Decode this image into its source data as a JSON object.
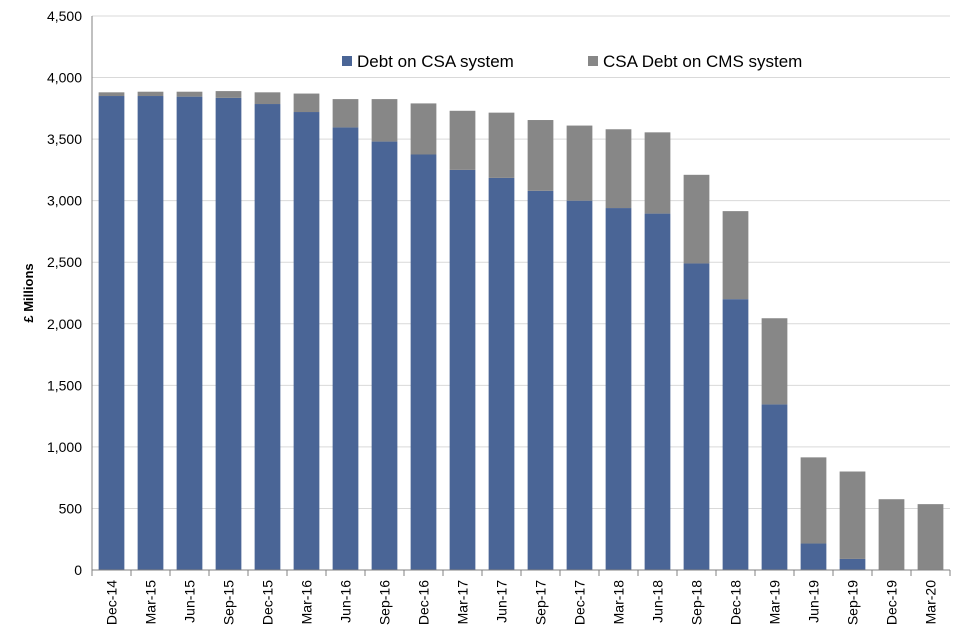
{
  "chart_data": {
    "type": "bar",
    "stacked": true,
    "title": "",
    "xlabel": "",
    "ylabel": "£ Millions",
    "ylim": [
      0,
      4500
    ],
    "yticks": [
      "0",
      "500",
      "1,000",
      "1,500",
      "2,000",
      "2,500",
      "3,000",
      "3,500",
      "4,000",
      "4,500"
    ],
    "grid": true,
    "legend_position": "top",
    "categories": [
      "Dec-14",
      "Mar-15",
      "Jun-15",
      "Sep-15",
      "Dec-15",
      "Mar-16",
      "Jun-16",
      "Sep-16",
      "Dec-16",
      "Mar-17",
      "Jun-17",
      "Sep-17",
      "Dec-17",
      "Mar-18",
      "Jun-18",
      "Sep-18",
      "Dec-18",
      "Mar-19",
      "Jun-19",
      "Sep-19",
      "Dec-19",
      "Mar-20"
    ],
    "series": [
      {
        "name": "Debt on CSA system",
        "color": "#4a6596",
        "values": [
          3850,
          3850,
          3845,
          3835,
          3785,
          3720,
          3595,
          3480,
          3375,
          3250,
          3185,
          3080,
          3000,
          2940,
          2895,
          2490,
          2200,
          1345,
          215,
          90,
          0,
          0
        ]
      },
      {
        "name": "CSA Debt on CMS system",
        "color": "#878787",
        "values": [
          30,
          35,
          40,
          55,
          95,
          150,
          230,
          345,
          415,
          480,
          530,
          575,
          610,
          640,
          660,
          720,
          715,
          700,
          700,
          710,
          575,
          535
        ]
      }
    ]
  }
}
